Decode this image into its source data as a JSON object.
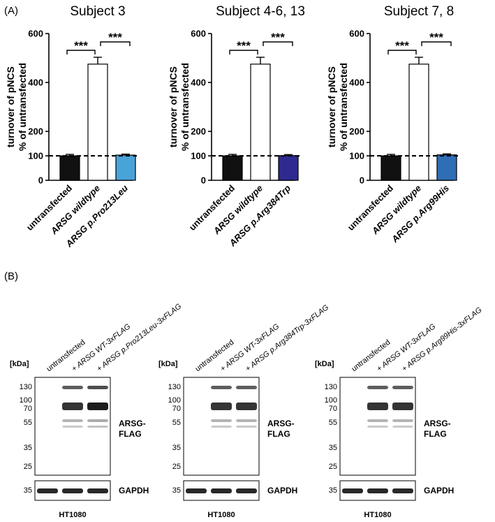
{
  "panel_a_label": "(A)",
  "panel_b_label": "(B)",
  "chart_data": [
    {
      "type": "bar",
      "title": "Subject 3",
      "ylabel": [
        "turnover of pNCS",
        "% of untransfected"
      ],
      "ylim": [
        0,
        600
      ],
      "yticks": [
        0,
        100,
        200,
        400,
        600
      ],
      "reference_line": 100,
      "categories": [
        "untransfected",
        "ARSG wildtype",
        "ARSG p.Pro213Leu"
      ],
      "values": [
        100,
        475,
        103
      ],
      "errors": [
        6,
        28,
        4
      ],
      "bar_colors": [
        "#111111",
        "#ffffff",
        "#4aa3d8"
      ],
      "significance": [
        {
          "from": 0,
          "to": 1,
          "label": "***"
        },
        {
          "from": 1,
          "to": 2,
          "label": "***"
        }
      ]
    },
    {
      "type": "bar",
      "title": "Subject 4-6, 13",
      "ylabel": [
        "turnover of pNCS",
        "% of untransfected"
      ],
      "ylim": [
        0,
        600
      ],
      "yticks": [
        0,
        100,
        200,
        400,
        600
      ],
      "reference_line": 100,
      "categories": [
        "untransfected",
        "ARSG wildtype",
        "ARSG p.Arg384Trp"
      ],
      "values": [
        100,
        475,
        101
      ],
      "errors": [
        6,
        28,
        4
      ],
      "bar_colors": [
        "#111111",
        "#ffffff",
        "#2e2a8f"
      ],
      "significance": [
        {
          "from": 0,
          "to": 1,
          "label": "***"
        },
        {
          "from": 1,
          "to": 2,
          "label": "***"
        }
      ]
    },
    {
      "type": "bar",
      "title": "Subject 7, 8",
      "ylabel": [
        "turnover of pNCS",
        "% of untransfected"
      ],
      "ylim": [
        0,
        600
      ],
      "yticks": [
        0,
        100,
        200,
        400,
        600
      ],
      "reference_line": 100,
      "categories": [
        "untransfected",
        "ARSG wildtype",
        "ARSG p.Arg99His"
      ],
      "values": [
        100,
        475,
        104
      ],
      "errors": [
        6,
        28,
        4
      ],
      "bar_colors": [
        "#111111",
        "#ffffff",
        "#2f6db5"
      ],
      "significance": [
        {
          "from": 0,
          "to": 1,
          "label": "***"
        },
        {
          "from": 1,
          "to": 2,
          "label": "***"
        }
      ]
    }
  ],
  "blots": [
    {
      "lanes": [
        "untransfected",
        "+ ARSG WT-3xFLAG",
        "+ ARSG p.Pro213Leu-3xFLAG"
      ],
      "kda_label": "[kDa]",
      "markers": [
        "130",
        "100",
        "70",
        "55",
        "35",
        "25"
      ],
      "gapdh_marker": "35",
      "flag_label": [
        "ARSG-",
        "FLAG"
      ],
      "gapdh_label": "GAPDH",
      "cell_line": "HT1080"
    },
    {
      "lanes": [
        "untransfected",
        "+ ARSG WT-3xFLAG",
        "+ ARSG p.Arg384Trp-3xFLAG"
      ],
      "kda_label": "[kDa]",
      "markers": [
        "130",
        "100",
        "70",
        "55",
        "35",
        "25"
      ],
      "gapdh_marker": "35",
      "flag_label": [
        "ARSG-",
        "FLAG"
      ],
      "gapdh_label": "GAPDH",
      "cell_line": "HT1080"
    },
    {
      "lanes": [
        "untransfected",
        "+ ARSG WT-3xFLAG",
        "+ ARSG p.Arg99His-3xFLAG"
      ],
      "kda_label": "[kDa]",
      "markers": [
        "130",
        "100",
        "70",
        "55",
        "35",
        "25"
      ],
      "gapdh_marker": "35",
      "flag_label": [
        "ARSG-",
        "FLAG"
      ],
      "gapdh_label": "GAPDH",
      "cell_line": "HT1080"
    }
  ]
}
